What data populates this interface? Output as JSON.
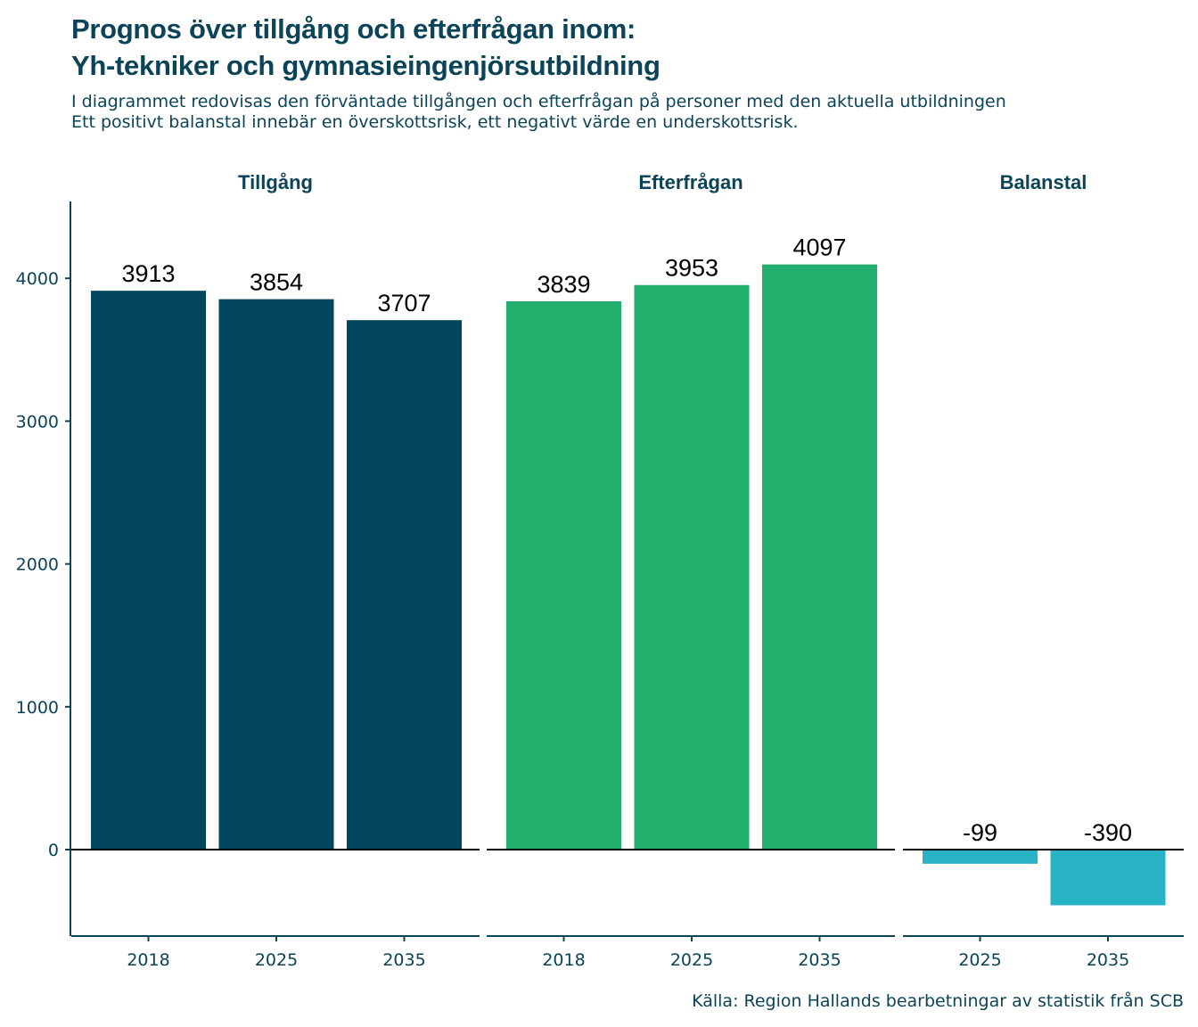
{
  "title_line1": "Prognos över tillgång och efterfrågan inom:",
  "title_line2": "Yh-tekniker och gymnasieingenjörsutbildning",
  "subtitle_line1": "I diagrammet redovisas den förväntade tillgången och efterfrågan på personer med den aktuella utbildningen",
  "subtitle_line2": "Ett positivt balanstal innebär en överskottsrisk, ett negativt värde en underskottsrisk.",
  "caption": "Källa: Region Hallands bearbetningar av statistik från SCB",
  "chart_data": {
    "type": "bar",
    "ylim": [
      -600,
      4550
    ],
    "yticks": [
      0,
      1000,
      2000,
      3000,
      4000
    ],
    "grid": false,
    "panels": [
      {
        "name": "Tillgång",
        "color": "#02475e",
        "categories": [
          "2018",
          "2025",
          "2035"
        ],
        "values": [
          3913,
          3854,
          3707
        ]
      },
      {
        "name": "Efterfrågan",
        "color": "#22ae6d",
        "categories": [
          "2018",
          "2025",
          "2035"
        ],
        "values": [
          3839,
          3953,
          4097
        ]
      },
      {
        "name": "Balanstal",
        "color": "#27b2c5",
        "categories": [
          "2025",
          "2035"
        ],
        "values": [
          -99,
          -390
        ]
      }
    ]
  }
}
